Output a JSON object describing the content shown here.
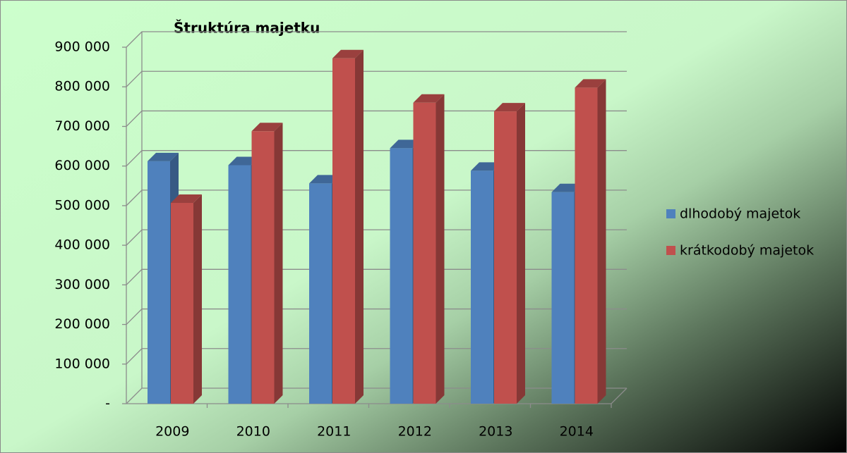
{
  "chart_data": {
    "type": "bar3d",
    "title": "Štruktúra majetku",
    "categories": [
      "2009",
      "2010",
      "2011",
      "2012",
      "2013",
      "2014"
    ],
    "series": [
      {
        "name": "dlhodobý majetok",
        "color": "#4f81bd",
        "values": [
          612000,
          602000,
          556000,
          645000,
          588000,
          534000
        ]
      },
      {
        "name": "krátkodobý majetok",
        "color": "#c0504d",
        "values": [
          507000,
          688000,
          872000,
          760000,
          738000,
          798000
        ]
      }
    ],
    "ylim": [
      0,
      900000
    ],
    "yticks": [
      {
        "value": 0,
        "label": "-"
      },
      {
        "value": 100000,
        "label": "100 000"
      },
      {
        "value": 200000,
        "label": "200 000"
      },
      {
        "value": 300000,
        "label": "300 000"
      },
      {
        "value": 400000,
        "label": "400 000"
      },
      {
        "value": 500000,
        "label": "500 000"
      },
      {
        "value": 600000,
        "label": "600 000"
      },
      {
        "value": 700000,
        "label": "700 000"
      },
      {
        "value": 800000,
        "label": "800 000"
      },
      {
        "value": 900000,
        "label": "900 000"
      }
    ],
    "grid": true,
    "legend": "right"
  }
}
